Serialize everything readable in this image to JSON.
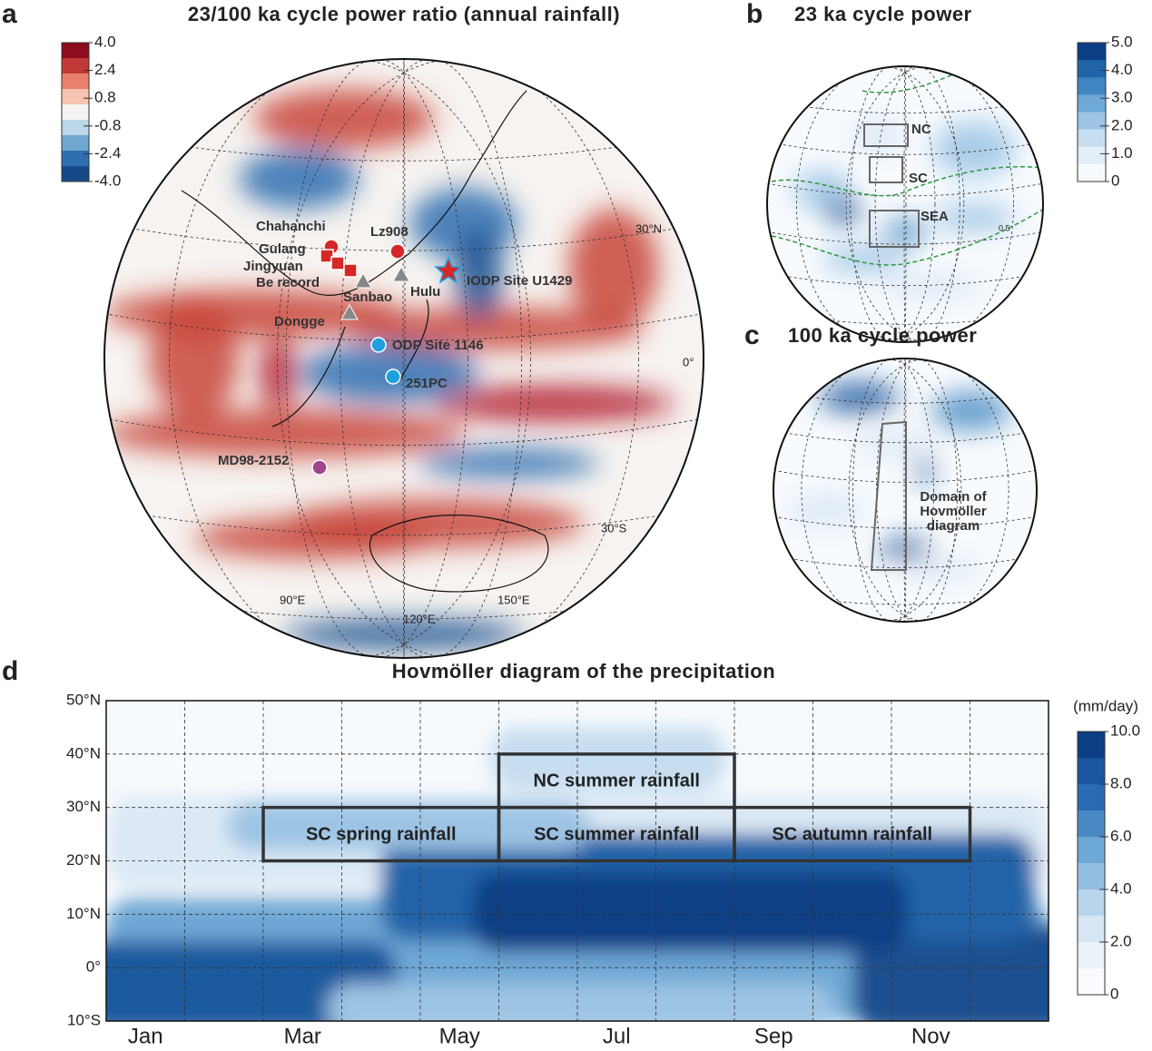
{
  "panel_a": {
    "label": "a",
    "title": "23/100 ka cycle power ratio (annual rainfall)",
    "colorbar": {
      "lim": [
        -4,
        4
      ],
      "ticks": [
        {
          "value": 4,
          "label": "4.0"
        },
        {
          "value": 2.4,
          "label": "2.4"
        },
        {
          "value": 0.8,
          "label": "0.8"
        },
        {
          "value": -0.8,
          "label": "-0.8"
        },
        {
          "value": -2.4,
          "label": "-2.4"
        },
        {
          "value": -4,
          "label": "-4.0"
        }
      ]
    },
    "sites": [
      "Chahanchi",
      "Gulang",
      "Jingyuan",
      "Be record",
      "Lz908",
      "Sanbao",
      "Hulu",
      "IODP Site U1429",
      "Dongge",
      "ODP Site 1146",
      "251PC",
      "MD98-2152"
    ],
    "graticule_labels": [
      "30°N",
      "0°",
      "30°S",
      "90°E",
      "120°E",
      "150°E"
    ]
  },
  "panel_b": {
    "label": "b",
    "title": "23 ka cycle power",
    "colorbar": {
      "lim": [
        0,
        5
      ],
      "ticks": [
        {
          "value": 5,
          "label": "5.0"
        },
        {
          "value": 4,
          "label": "4.0"
        },
        {
          "value": 3,
          "label": "3.0"
        },
        {
          "value": 2,
          "label": "2.0"
        },
        {
          "value": 1,
          "label": "1.0"
        },
        0
      ]
    },
    "regions": [
      "NC",
      "SC",
      "SEA"
    ],
    "contour_label": "0.5"
  },
  "panel_c": {
    "label": "c",
    "title": "100 ka cycle power",
    "annotation": [
      "Domain of",
      "Hovmöller",
      "diagram"
    ]
  },
  "panel_d": {
    "label": "d",
    "title": "Hovmöller diagram of the precipitation",
    "unit": "(mm/day)",
    "ylim": [
      -10,
      50
    ],
    "yticks": [
      {
        "value": -10,
        "label": "10°S"
      },
      {
        "value": 0,
        "label": "0°"
      },
      {
        "value": 10,
        "label": "10°N"
      },
      {
        "value": 20,
        "label": "20°N"
      },
      {
        "value": 30,
        "label": "30°N"
      },
      {
        "value": 40,
        "label": "40°N"
      },
      {
        "value": 50,
        "label": "50°N"
      }
    ],
    "categories": [
      "Jan",
      null,
      "Mar",
      null,
      "May",
      null,
      "Jul",
      null,
      "Sep",
      null,
      "Nov",
      null
    ],
    "boxes": [
      {
        "label": "SC spring rainfall",
        "lat": [
          20,
          30
        ]
      },
      {
        "label": "NC summer rainfall",
        "lat": [
          30,
          40
        ]
      },
      {
        "label": "SC summer rainfall",
        "lat": [
          20,
          30
        ]
      },
      {
        "label": "SC autumn rainfall",
        "lat": [
          20,
          30
        ]
      }
    ],
    "colorbar": {
      "lim": [
        0,
        10
      ],
      "ticks": [
        {
          "value": 10,
          "label": "10.0"
        },
        {
          "value": 8,
          "label": "8.0"
        },
        {
          "value": 6,
          "label": "6.0"
        },
        {
          "value": 4,
          "label": "4.0"
        },
        {
          "value": 2,
          "label": "2.0"
        },
        0
      ]
    }
  }
}
